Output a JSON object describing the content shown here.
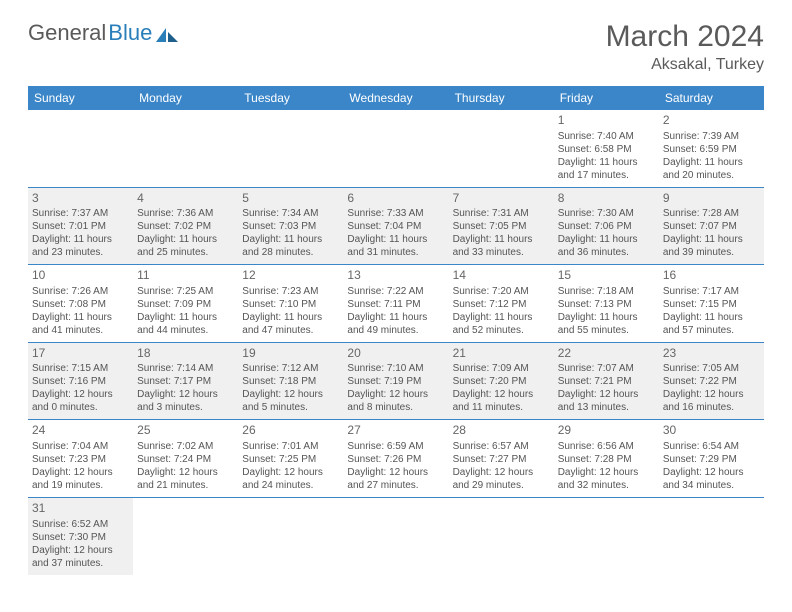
{
  "brand": {
    "part1": "General",
    "part2": "Blue"
  },
  "title": "March 2024",
  "location": "Aksakal, Turkey",
  "colors": {
    "header_bg": "#3a86c8",
    "header_text": "#ffffff",
    "row_border": "#3a86c8",
    "alt_row_bg": "#f3f3f3",
    "text": "#555555",
    "title_text": "#5a5a5a"
  },
  "day_headers": [
    "Sunday",
    "Monday",
    "Tuesday",
    "Wednesday",
    "Thursday",
    "Friday",
    "Saturday"
  ],
  "weeks": [
    [
      null,
      null,
      null,
      null,
      null,
      {
        "n": "1",
        "sr": "7:40 AM",
        "ss": "6:58 PM",
        "dl": "11 hours and 17 minutes."
      },
      {
        "n": "2",
        "sr": "7:39 AM",
        "ss": "6:59 PM",
        "dl": "11 hours and 20 minutes."
      }
    ],
    [
      {
        "n": "3",
        "sr": "7:37 AM",
        "ss": "7:01 PM",
        "dl": "11 hours and 23 minutes."
      },
      {
        "n": "4",
        "sr": "7:36 AM",
        "ss": "7:02 PM",
        "dl": "11 hours and 25 minutes."
      },
      {
        "n": "5",
        "sr": "7:34 AM",
        "ss": "7:03 PM",
        "dl": "11 hours and 28 minutes."
      },
      {
        "n": "6",
        "sr": "7:33 AM",
        "ss": "7:04 PM",
        "dl": "11 hours and 31 minutes."
      },
      {
        "n": "7",
        "sr": "7:31 AM",
        "ss": "7:05 PM",
        "dl": "11 hours and 33 minutes."
      },
      {
        "n": "8",
        "sr": "7:30 AM",
        "ss": "7:06 PM",
        "dl": "11 hours and 36 minutes."
      },
      {
        "n": "9",
        "sr": "7:28 AM",
        "ss": "7:07 PM",
        "dl": "11 hours and 39 minutes."
      }
    ],
    [
      {
        "n": "10",
        "sr": "7:26 AM",
        "ss": "7:08 PM",
        "dl": "11 hours and 41 minutes."
      },
      {
        "n": "11",
        "sr": "7:25 AM",
        "ss": "7:09 PM",
        "dl": "11 hours and 44 minutes."
      },
      {
        "n": "12",
        "sr": "7:23 AM",
        "ss": "7:10 PM",
        "dl": "11 hours and 47 minutes."
      },
      {
        "n": "13",
        "sr": "7:22 AM",
        "ss": "7:11 PM",
        "dl": "11 hours and 49 minutes."
      },
      {
        "n": "14",
        "sr": "7:20 AM",
        "ss": "7:12 PM",
        "dl": "11 hours and 52 minutes."
      },
      {
        "n": "15",
        "sr": "7:18 AM",
        "ss": "7:13 PM",
        "dl": "11 hours and 55 minutes."
      },
      {
        "n": "16",
        "sr": "7:17 AM",
        "ss": "7:15 PM",
        "dl": "11 hours and 57 minutes."
      }
    ],
    [
      {
        "n": "17",
        "sr": "7:15 AM",
        "ss": "7:16 PM",
        "dl": "12 hours and 0 minutes."
      },
      {
        "n": "18",
        "sr": "7:14 AM",
        "ss": "7:17 PM",
        "dl": "12 hours and 3 minutes."
      },
      {
        "n": "19",
        "sr": "7:12 AM",
        "ss": "7:18 PM",
        "dl": "12 hours and 5 minutes."
      },
      {
        "n": "20",
        "sr": "7:10 AM",
        "ss": "7:19 PM",
        "dl": "12 hours and 8 minutes."
      },
      {
        "n": "21",
        "sr": "7:09 AM",
        "ss": "7:20 PM",
        "dl": "12 hours and 11 minutes."
      },
      {
        "n": "22",
        "sr": "7:07 AM",
        "ss": "7:21 PM",
        "dl": "12 hours and 13 minutes."
      },
      {
        "n": "23",
        "sr": "7:05 AM",
        "ss": "7:22 PM",
        "dl": "12 hours and 16 minutes."
      }
    ],
    [
      {
        "n": "24",
        "sr": "7:04 AM",
        "ss": "7:23 PM",
        "dl": "12 hours and 19 minutes."
      },
      {
        "n": "25",
        "sr": "7:02 AM",
        "ss": "7:24 PM",
        "dl": "12 hours and 21 minutes."
      },
      {
        "n": "26",
        "sr": "7:01 AM",
        "ss": "7:25 PM",
        "dl": "12 hours and 24 minutes."
      },
      {
        "n": "27",
        "sr": "6:59 AM",
        "ss": "7:26 PM",
        "dl": "12 hours and 27 minutes."
      },
      {
        "n": "28",
        "sr": "6:57 AM",
        "ss": "7:27 PM",
        "dl": "12 hours and 29 minutes."
      },
      {
        "n": "29",
        "sr": "6:56 AM",
        "ss": "7:28 PM",
        "dl": "12 hours and 32 minutes."
      },
      {
        "n": "30",
        "sr": "6:54 AM",
        "ss": "7:29 PM",
        "dl": "12 hours and 34 minutes."
      }
    ],
    [
      {
        "n": "31",
        "sr": "6:52 AM",
        "ss": "7:30 PM",
        "dl": "12 hours and 37 minutes."
      },
      null,
      null,
      null,
      null,
      null,
      null
    ]
  ],
  "labels": {
    "sunrise": "Sunrise:",
    "sunset": "Sunset:",
    "daylight": "Daylight:"
  }
}
